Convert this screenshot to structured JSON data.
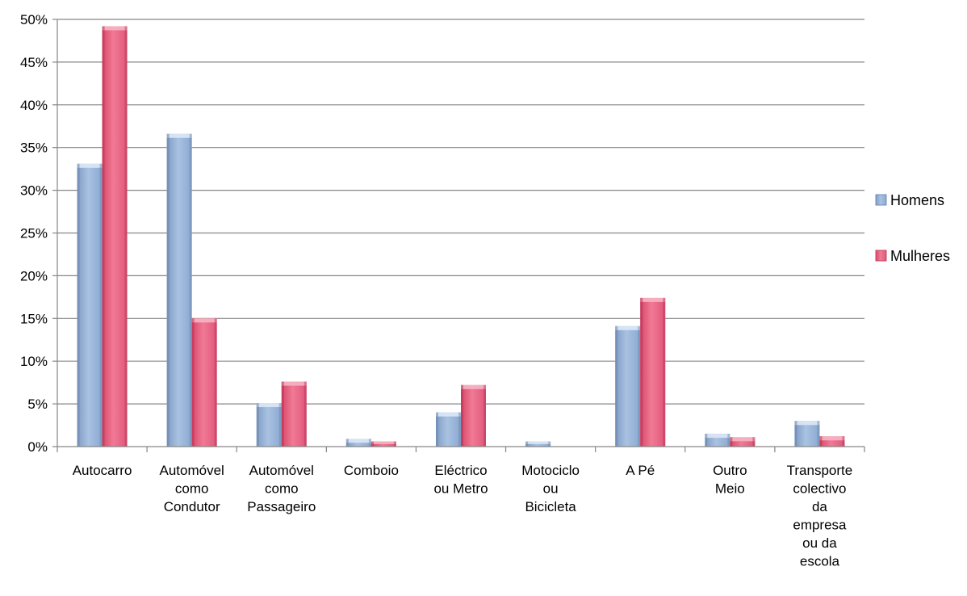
{
  "chart_data": {
    "type": "bar",
    "categories": [
      [
        "Autocarro"
      ],
      [
        "Automóvel",
        "como",
        "Condutor"
      ],
      [
        "Automóvel",
        "como",
        "Passageiro"
      ],
      [
        "Comboio"
      ],
      [
        "Eléctrico",
        "ou Metro"
      ],
      [
        "Motociclo",
        "ou",
        "Bicicleta"
      ],
      [
        "A Pé"
      ],
      [
        "Outro",
        "Meio"
      ],
      [
        "Transporte",
        "colectivo",
        "da",
        "empresa",
        "ou da",
        "escola"
      ]
    ],
    "series": [
      {
        "name": "Homens",
        "color": "#95b3d7",
        "values": [
          33.1,
          36.6,
          5.1,
          0.9,
          4.0,
          0.6,
          14.1,
          1.5,
          3.0
        ]
      },
      {
        "name": "Mulheres",
        "color": "#e8607e",
        "values": [
          49.2,
          15.0,
          7.6,
          0.6,
          7.2,
          0.0,
          17.4,
          1.1,
          1.2
        ]
      }
    ],
    "ylim": [
      0,
      50
    ],
    "yticks": [
      "0%",
      "5%",
      "10%",
      "15%",
      "20%",
      "25%",
      "30%",
      "35%",
      "40%",
      "45%",
      "50%"
    ],
    "ytick_values": [
      0,
      5,
      10,
      15,
      20,
      25,
      30,
      35,
      40,
      45,
      50
    ],
    "grid": true,
    "legend": "right",
    "title": "",
    "xlabel": "",
    "ylabel": ""
  }
}
